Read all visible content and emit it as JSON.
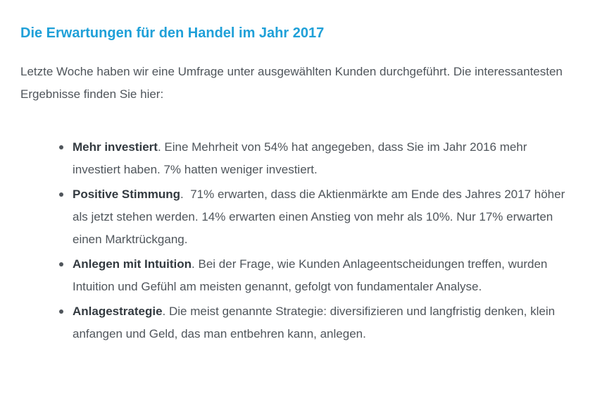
{
  "article": {
    "title": "Die Erwartungen für den Handel im Jahr 2017",
    "intro": "Letzte Woche haben wir eine Umfrage unter ausgewählten Kunden durchgeführt. Die interessantesten Ergebnisse finden Sie hier:",
    "items": [
      {
        "heading": "Mehr investiert",
        "text": ". Eine Mehrheit von 54% hat angegeben, dass Sie im Jahr 2016 mehr investiert haben. 7% hatten weniger investiert."
      },
      {
        "heading": "Positive Stimmung",
        "text": ".  71% erwarten, dass die Aktienmärkte am Ende des Jahres 2017 höher als jetzt stehen werden. 14% erwarten einen Anstieg von mehr als 10%. Nur 17% erwarten einen Marktrückgang."
      },
      {
        "heading": "Anlegen mit Intuition",
        "text": ". Bei der Frage, wie Kunden Anlageentscheidungen treffen, wurden Intuition und Gefühl am meisten genannt, gefolgt von fundamentaler Analyse."
      },
      {
        "heading": "Anlagestrategie",
        "text": ". Die meist genannte Strategie: diversifizieren und langfristig denken, klein anfangen und Geld, das man entbehren kann, anlegen."
      }
    ]
  }
}
